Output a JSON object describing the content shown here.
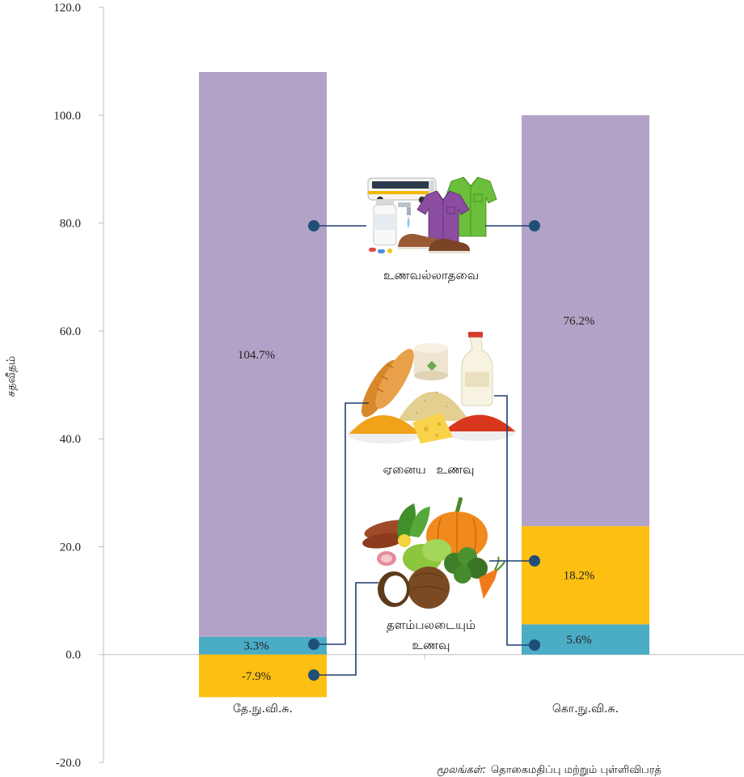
{
  "chart_data": {
    "type": "bar",
    "stacked": true,
    "title": "",
    "xlabel": "",
    "ylabel": "சதவீதம்",
    "ylim": [
      -20,
      120
    ],
    "grid": false,
    "yticks": {
      "values": [
        -20,
        0,
        20,
        40,
        60,
        80,
        100,
        120
      ],
      "labels": [
        "-20.0",
        "0.0",
        "20.0",
        "40.0",
        "60.0",
        "80.0",
        "100.0",
        "120.0"
      ]
    },
    "categories": [
      "தே.நு.வி.சு.",
      "கொ.நு.வி.சு."
    ],
    "series": [
      {
        "name": "ஏனைய உணவு",
        "values": [
          3.3,
          5.6
        ],
        "labels": [
          "3.3%",
          "5.6%"
        ],
        "color": "#4bacc6"
      },
      {
        "name": "தளம்பலடையும் உணவு",
        "values": [
          -7.9,
          18.2
        ],
        "labels": [
          "-7.9%",
          "18.2%"
        ],
        "color": "#fdc012"
      },
      {
        "name": "உணவல்லாதவை",
        "values": [
          104.7,
          76.2
        ],
        "labels": [
          "104.7%",
          "76.2%"
        ],
        "color": "#b3a2c7"
      }
    ]
  },
  "illustrations": {
    "non_food": "non-food-items-icon",
    "other_food": "other-food-items-icon",
    "volatile_food": "volatile-food-items-icon"
  },
  "source": {
    "label": "மூலங்கள்:",
    "text": "தொகைமதிப்பு மற்றும் புள்ளிவிபரத்"
  }
}
